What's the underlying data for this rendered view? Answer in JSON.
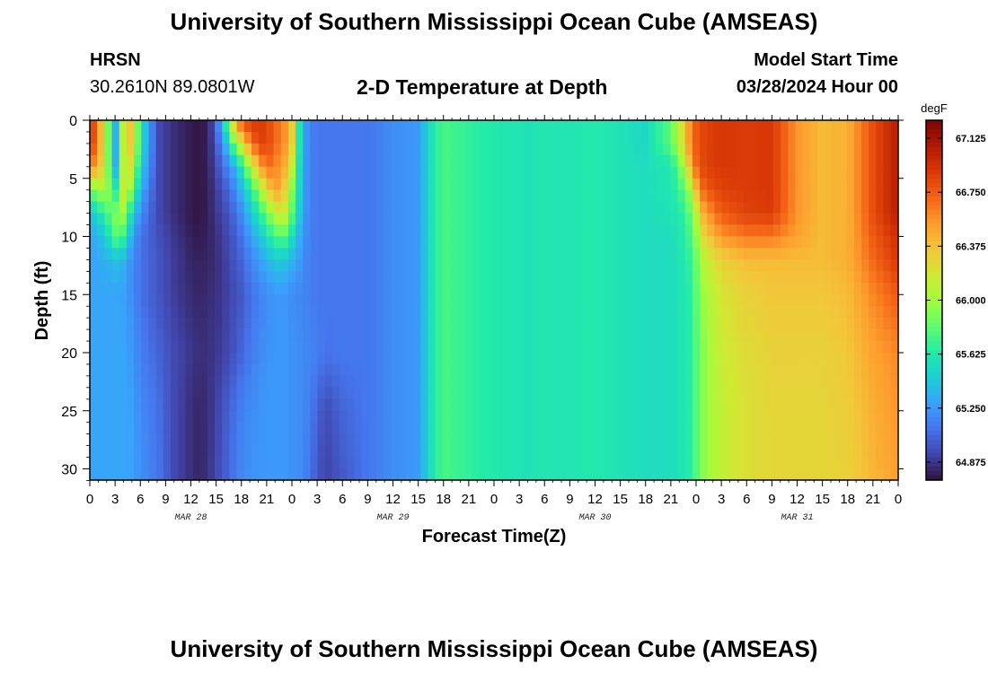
{
  "header": {
    "title": "University of Southern Mississippi Ocean Cube (AMSEAS)",
    "station": "HRSN",
    "coordinates": "30.2610N  89.0801W",
    "subtitle": "2-D Temperature at Depth",
    "model_start_label": "Model Start Time",
    "model_start_value": "03/28/2024 Hour 00"
  },
  "footer": {
    "title": "University of Southern Mississippi Ocean Cube (AMSEAS)"
  },
  "chart_data": {
    "type": "heatmap",
    "title": "2-D Temperature at Depth",
    "xlabel": "Forecast Time(Z)",
    "ylabel": "Depth (ft)",
    "x_ticks": [
      "0",
      "3",
      "6",
      "9",
      "12",
      "15",
      "18",
      "21",
      "0",
      "3",
      "6",
      "9",
      "12",
      "15",
      "18",
      "21",
      "0",
      "3",
      "6",
      "9",
      "12",
      "15",
      "18",
      "21",
      "0",
      "3",
      "6",
      "9",
      "12",
      "15",
      "18",
      "21",
      "0"
    ],
    "x_hours_range": [
      0,
      96
    ],
    "date_labels": [
      {
        "label": "MAR 28",
        "hour": 12
      },
      {
        "label": "MAR 29",
        "hour": 36
      },
      {
        "label": "MAR 30",
        "hour": 60
      },
      {
        "label": "MAR 31",
        "hour": 84
      }
    ],
    "y_ticks": [
      0,
      5,
      10,
      15,
      20,
      25,
      30
    ],
    "ylim": [
      0,
      31
    ],
    "y_inverted": true,
    "colorbar": {
      "unit": "degF",
      "ticks": [
        "67.125",
        "66.750",
        "66.375",
        "66.000",
        "65.625",
        "65.250",
        "64.875"
      ],
      "range": [
        64.75,
        67.25
      ],
      "colors": [
        "#30123b",
        "#4145ab",
        "#4675ed",
        "#39a2fc",
        "#1bcfd4",
        "#24eca6",
        "#61fc6c",
        "#a4fc3b",
        "#d1e834",
        "#f3c63a",
        "#fe9b2d",
        "#f36315",
        "#d93806",
        "#b11901",
        "#7a0402"
      ]
    },
    "values_degF": {
      "time_hours": [
        0,
        1,
        2,
        3,
        4,
        5,
        6,
        8,
        10,
        12,
        13,
        14,
        15,
        16,
        17,
        18,
        19,
        20,
        21,
        22,
        23,
        24,
        25,
        26,
        27,
        28,
        30,
        33,
        36,
        39,
        40,
        41,
        42,
        43,
        44,
        45,
        46,
        48,
        50,
        52,
        54,
        57,
        60,
        63,
        66,
        69,
        70,
        71,
        72,
        73,
        75,
        78,
        81,
        84,
        87,
        90,
        93,
        96
      ],
      "depth_ft": [
        0,
        2,
        4,
        6,
        8,
        10,
        12,
        15,
        20,
        25,
        31
      ],
      "rows": [
        [
          66.95,
          66.6,
          66.0,
          65.3,
          66.15,
          66.4,
          65.6,
          64.95,
          64.85,
          64.78,
          64.76,
          64.8,
          65.05,
          65.6,
          66.3,
          66.8,
          66.9,
          66.9,
          66.85,
          66.7,
          66.6,
          66.3,
          65.5,
          65.15,
          65.12,
          65.12,
          65.12,
          65.12,
          65.2,
          65.25,
          65.45,
          65.65,
          65.75,
          65.72,
          65.7,
          65.68,
          65.65,
          65.62,
          65.6,
          65.58,
          65.6,
          65.6,
          65.62,
          65.58,
          65.52,
          65.8,
          66.1,
          66.5,
          66.75,
          66.85,
          66.9,
          66.88,
          66.9,
          66.55,
          66.4,
          66.45,
          66.8,
          67.05
        ],
        [
          66.95,
          66.6,
          66.0,
          65.3,
          66.15,
          66.4,
          65.6,
          64.95,
          64.85,
          64.78,
          64.76,
          64.8,
          65.0,
          65.3,
          65.8,
          66.2,
          66.6,
          66.85,
          66.85,
          66.7,
          66.6,
          66.3,
          65.5,
          65.15,
          65.12,
          65.12,
          65.12,
          65.12,
          65.2,
          65.25,
          65.45,
          65.65,
          65.75,
          65.72,
          65.7,
          65.68,
          65.65,
          65.62,
          65.6,
          65.58,
          65.6,
          65.6,
          65.62,
          65.58,
          65.52,
          65.8,
          66.1,
          66.5,
          66.75,
          66.85,
          66.9,
          66.88,
          66.9,
          66.55,
          66.4,
          66.45,
          66.8,
          67.05
        ],
        [
          66.6,
          66.5,
          66.0,
          65.3,
          66.1,
          66.2,
          65.5,
          64.95,
          64.85,
          64.78,
          64.76,
          64.8,
          64.95,
          65.1,
          65.3,
          65.6,
          66.0,
          66.4,
          66.7,
          66.6,
          66.5,
          66.1,
          65.45,
          65.15,
          65.12,
          65.12,
          65.12,
          65.12,
          65.2,
          65.25,
          65.45,
          65.65,
          65.75,
          65.72,
          65.7,
          65.68,
          65.65,
          65.62,
          65.6,
          65.58,
          65.6,
          65.6,
          65.62,
          65.58,
          65.55,
          65.6,
          65.8,
          66.3,
          66.7,
          66.85,
          66.9,
          66.88,
          66.9,
          66.55,
          66.4,
          66.45,
          66.8,
          67.05
        ],
        [
          65.8,
          66.0,
          66.0,
          65.6,
          66.2,
          65.9,
          65.35,
          64.95,
          64.85,
          64.78,
          64.76,
          64.8,
          64.9,
          65.0,
          65.15,
          65.35,
          65.6,
          65.9,
          66.25,
          66.55,
          66.35,
          65.9,
          65.45,
          65.15,
          65.12,
          65.12,
          65.12,
          65.12,
          65.2,
          65.25,
          65.45,
          65.65,
          65.75,
          65.72,
          65.7,
          65.68,
          65.65,
          65.62,
          65.6,
          65.58,
          65.6,
          65.6,
          65.62,
          65.58,
          65.55,
          65.6,
          65.7,
          65.9,
          66.4,
          66.75,
          66.85,
          66.88,
          66.9,
          66.55,
          66.4,
          66.45,
          66.8,
          67.05
        ],
        [
          65.4,
          65.55,
          65.75,
          65.9,
          66.0,
          65.5,
          65.2,
          64.95,
          64.85,
          64.78,
          64.76,
          64.8,
          64.88,
          64.95,
          65.05,
          65.2,
          65.4,
          65.6,
          65.85,
          66.1,
          66.2,
          65.8,
          65.4,
          65.15,
          65.12,
          65.12,
          65.12,
          65.12,
          65.2,
          65.25,
          65.45,
          65.65,
          65.75,
          65.72,
          65.7,
          65.68,
          65.65,
          65.62,
          65.6,
          65.58,
          65.6,
          65.6,
          65.62,
          65.58,
          65.55,
          65.58,
          65.62,
          65.75,
          66.1,
          66.5,
          66.75,
          66.85,
          66.88,
          66.55,
          66.4,
          66.45,
          66.8,
          67.05
        ],
        [
          65.3,
          65.35,
          65.5,
          65.8,
          65.7,
          65.3,
          65.1,
          64.98,
          64.88,
          64.8,
          64.78,
          64.8,
          64.86,
          64.92,
          65.0,
          65.1,
          65.25,
          65.4,
          65.55,
          65.75,
          65.8,
          65.55,
          65.3,
          65.15,
          65.12,
          65.12,
          65.12,
          65.12,
          65.2,
          65.25,
          65.45,
          65.65,
          65.75,
          65.72,
          65.7,
          65.68,
          65.65,
          65.62,
          65.6,
          65.58,
          65.6,
          65.6,
          65.62,
          65.58,
          65.55,
          65.55,
          65.6,
          65.7,
          65.95,
          66.3,
          66.55,
          66.65,
          66.65,
          66.5,
          66.4,
          66.45,
          66.75,
          66.95
        ],
        [
          65.3,
          65.3,
          65.35,
          65.4,
          65.35,
          65.2,
          65.1,
          65.0,
          64.9,
          64.82,
          64.8,
          64.82,
          64.85,
          64.9,
          64.98,
          65.05,
          65.15,
          65.25,
          65.35,
          65.45,
          65.45,
          65.35,
          65.25,
          65.15,
          65.12,
          65.12,
          65.12,
          65.12,
          65.2,
          65.25,
          65.45,
          65.65,
          65.75,
          65.72,
          65.7,
          65.68,
          65.65,
          65.62,
          65.6,
          65.58,
          65.6,
          65.6,
          65.62,
          65.58,
          65.55,
          65.55,
          65.58,
          65.65,
          65.85,
          66.1,
          66.3,
          66.4,
          66.4,
          66.4,
          66.4,
          66.45,
          66.7,
          66.9
        ],
        [
          65.3,
          65.3,
          65.3,
          65.3,
          65.28,
          65.2,
          65.1,
          65.0,
          64.9,
          64.84,
          64.82,
          64.84,
          64.86,
          64.9,
          64.95,
          65.0,
          65.08,
          65.15,
          65.2,
          65.25,
          65.25,
          65.2,
          65.18,
          65.15,
          65.12,
          65.12,
          65.12,
          65.12,
          65.2,
          65.25,
          65.45,
          65.65,
          65.75,
          65.72,
          65.7,
          65.68,
          65.65,
          65.62,
          65.6,
          65.58,
          65.6,
          65.6,
          65.62,
          65.58,
          65.55,
          65.55,
          65.58,
          65.62,
          65.8,
          66.0,
          66.2,
          66.3,
          66.35,
          66.35,
          66.35,
          66.4,
          66.6,
          66.75
        ],
        [
          65.3,
          65.3,
          65.3,
          65.3,
          65.3,
          65.25,
          65.15,
          65.05,
          64.95,
          64.88,
          64.85,
          64.86,
          64.88,
          64.92,
          64.98,
          65.05,
          65.12,
          65.18,
          65.22,
          65.25,
          65.25,
          65.22,
          65.2,
          65.18,
          65.15,
          65.1,
          65.12,
          65.12,
          65.2,
          65.25,
          65.45,
          65.65,
          65.75,
          65.72,
          65.7,
          65.68,
          65.65,
          65.62,
          65.6,
          65.58,
          65.6,
          65.6,
          65.62,
          65.58,
          65.55,
          65.55,
          65.58,
          65.62,
          65.78,
          65.95,
          66.15,
          66.25,
          66.3,
          66.3,
          66.3,
          66.35,
          66.5,
          66.6
        ],
        [
          65.3,
          65.3,
          65.3,
          65.3,
          65.3,
          65.28,
          65.2,
          65.1,
          64.95,
          64.85,
          64.82,
          64.85,
          64.92,
          65.0,
          65.08,
          65.15,
          65.2,
          65.22,
          65.25,
          65.25,
          65.25,
          65.22,
          65.2,
          65.15,
          65.05,
          64.95,
          65.05,
          65.12,
          65.2,
          65.25,
          65.45,
          65.65,
          65.75,
          65.72,
          65.7,
          65.68,
          65.65,
          65.62,
          65.6,
          65.58,
          65.6,
          65.6,
          65.62,
          65.58,
          65.55,
          65.55,
          65.58,
          65.62,
          65.78,
          65.95,
          66.12,
          66.22,
          66.28,
          66.28,
          66.28,
          66.32,
          66.45,
          66.55
        ],
        [
          65.3,
          65.3,
          65.3,
          65.3,
          65.3,
          65.28,
          65.22,
          65.12,
          64.95,
          64.85,
          64.82,
          64.86,
          64.94,
          65.02,
          65.1,
          65.18,
          65.22,
          65.24,
          65.25,
          65.25,
          65.25,
          65.22,
          65.2,
          65.12,
          65.0,
          64.92,
          65.0,
          65.12,
          65.2,
          65.25,
          65.45,
          65.65,
          65.75,
          65.72,
          65.7,
          65.68,
          65.65,
          65.62,
          65.6,
          65.58,
          65.6,
          65.6,
          65.62,
          65.58,
          65.55,
          65.55,
          65.58,
          65.62,
          65.78,
          65.95,
          66.12,
          66.22,
          66.28,
          66.28,
          66.28,
          66.3,
          66.42,
          66.52
        ]
      ]
    }
  }
}
